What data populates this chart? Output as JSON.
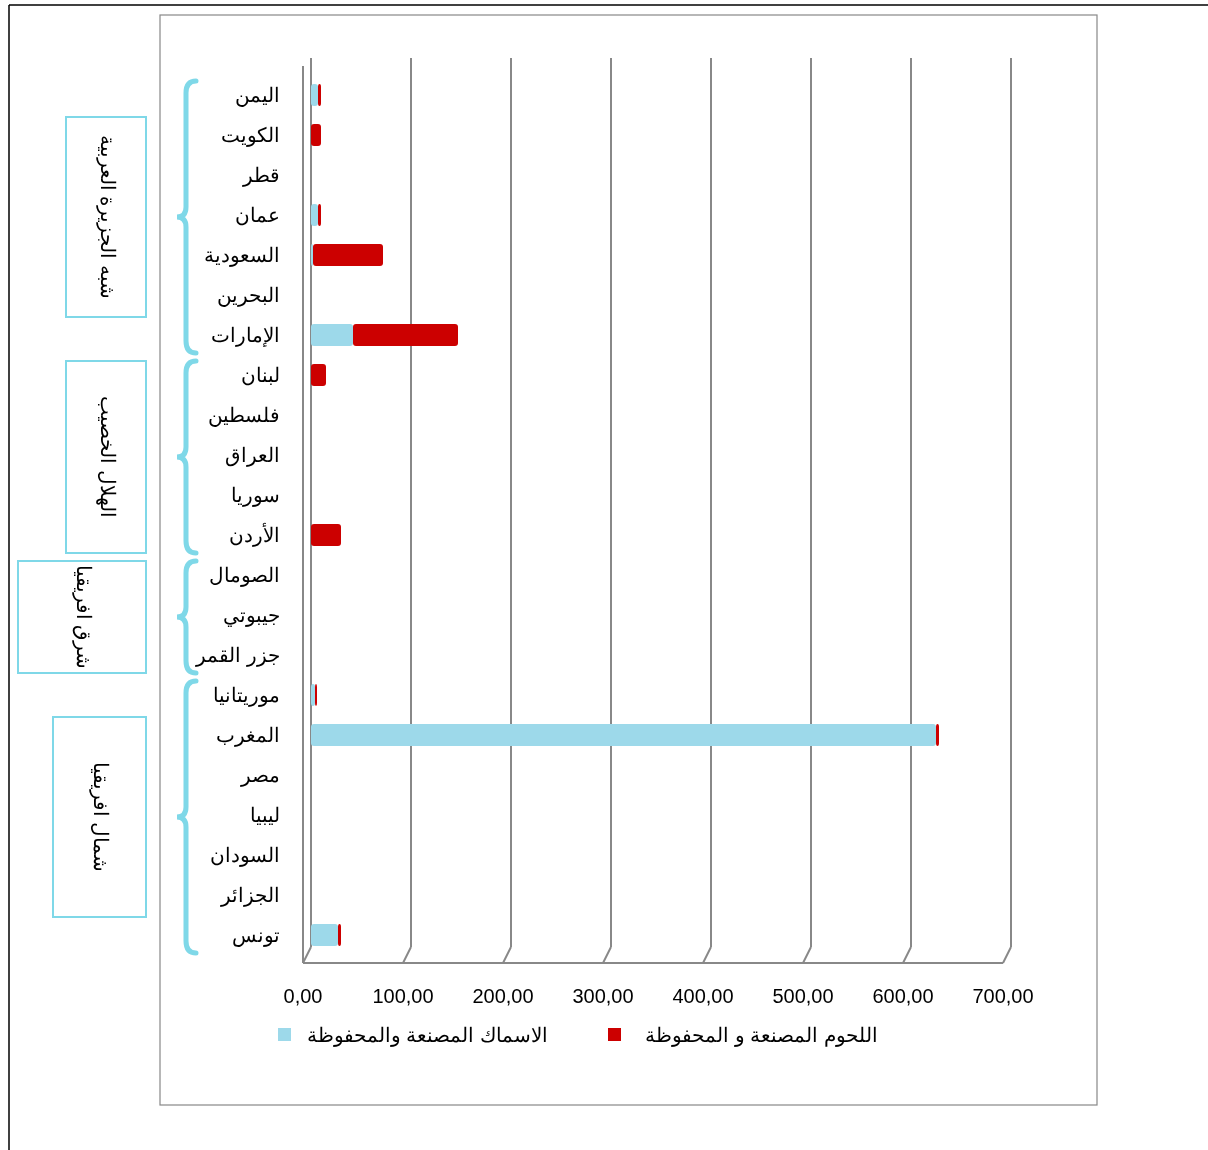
{
  "chart_data": {
    "type": "bar",
    "orientation": "horizontal",
    "stacked": true,
    "categories": [
      "اليمن",
      "الكويت",
      "قطر",
      "عمان",
      "السعودية",
      "البحرين",
      "الإمارات",
      "لبنان",
      "فلسطين",
      "العراق",
      "سوريا",
      "الأردن",
      "الصومال",
      "جيبوتي",
      "جزر القمر",
      "موريتانيا",
      "المغرب",
      "مصر",
      "ليبيا",
      "السودان",
      "الجزائر",
      "تونس"
    ],
    "series": [
      {
        "name": "الاسماك المصنعة والمحفوظة",
        "color": "#9dd9ea",
        "values": [
          7,
          0,
          0,
          7,
          2,
          0,
          42,
          0,
          0,
          0,
          0,
          0,
          0,
          0,
          0,
          4,
          625,
          0,
          0,
          0,
          0,
          27
        ]
      },
      {
        "name": "اللحوم المصنعة و المحفوظة",
        "color": "#cc0000",
        "values": [
          3,
          10,
          0,
          3,
          70,
          0,
          105,
          15,
          0,
          0,
          0,
          30,
          0,
          0,
          0,
          2,
          3,
          0,
          0,
          0,
          0,
          3
        ]
      }
    ],
    "xlim": [
      0,
      700
    ],
    "xticks": [
      {
        "value": 0,
        "label": "0,00"
      },
      {
        "value": 100,
        "label": "100,00"
      },
      {
        "value": 200,
        "label": "200,00"
      },
      {
        "value": 300,
        "label": "300,00"
      },
      {
        "value": 400,
        "label": "400,00"
      },
      {
        "value": 500,
        "label": "500,00"
      },
      {
        "value": 600,
        "label": "600,00"
      },
      {
        "value": 700,
        "label": "700,00"
      }
    ],
    "grid": "x",
    "legend": "bottom",
    "annotations": [
      "شبه الجزيرة العربية",
      "الهلال الخصيب",
      "شرق افريقيا",
      "شمال افريقيا"
    ]
  }
}
